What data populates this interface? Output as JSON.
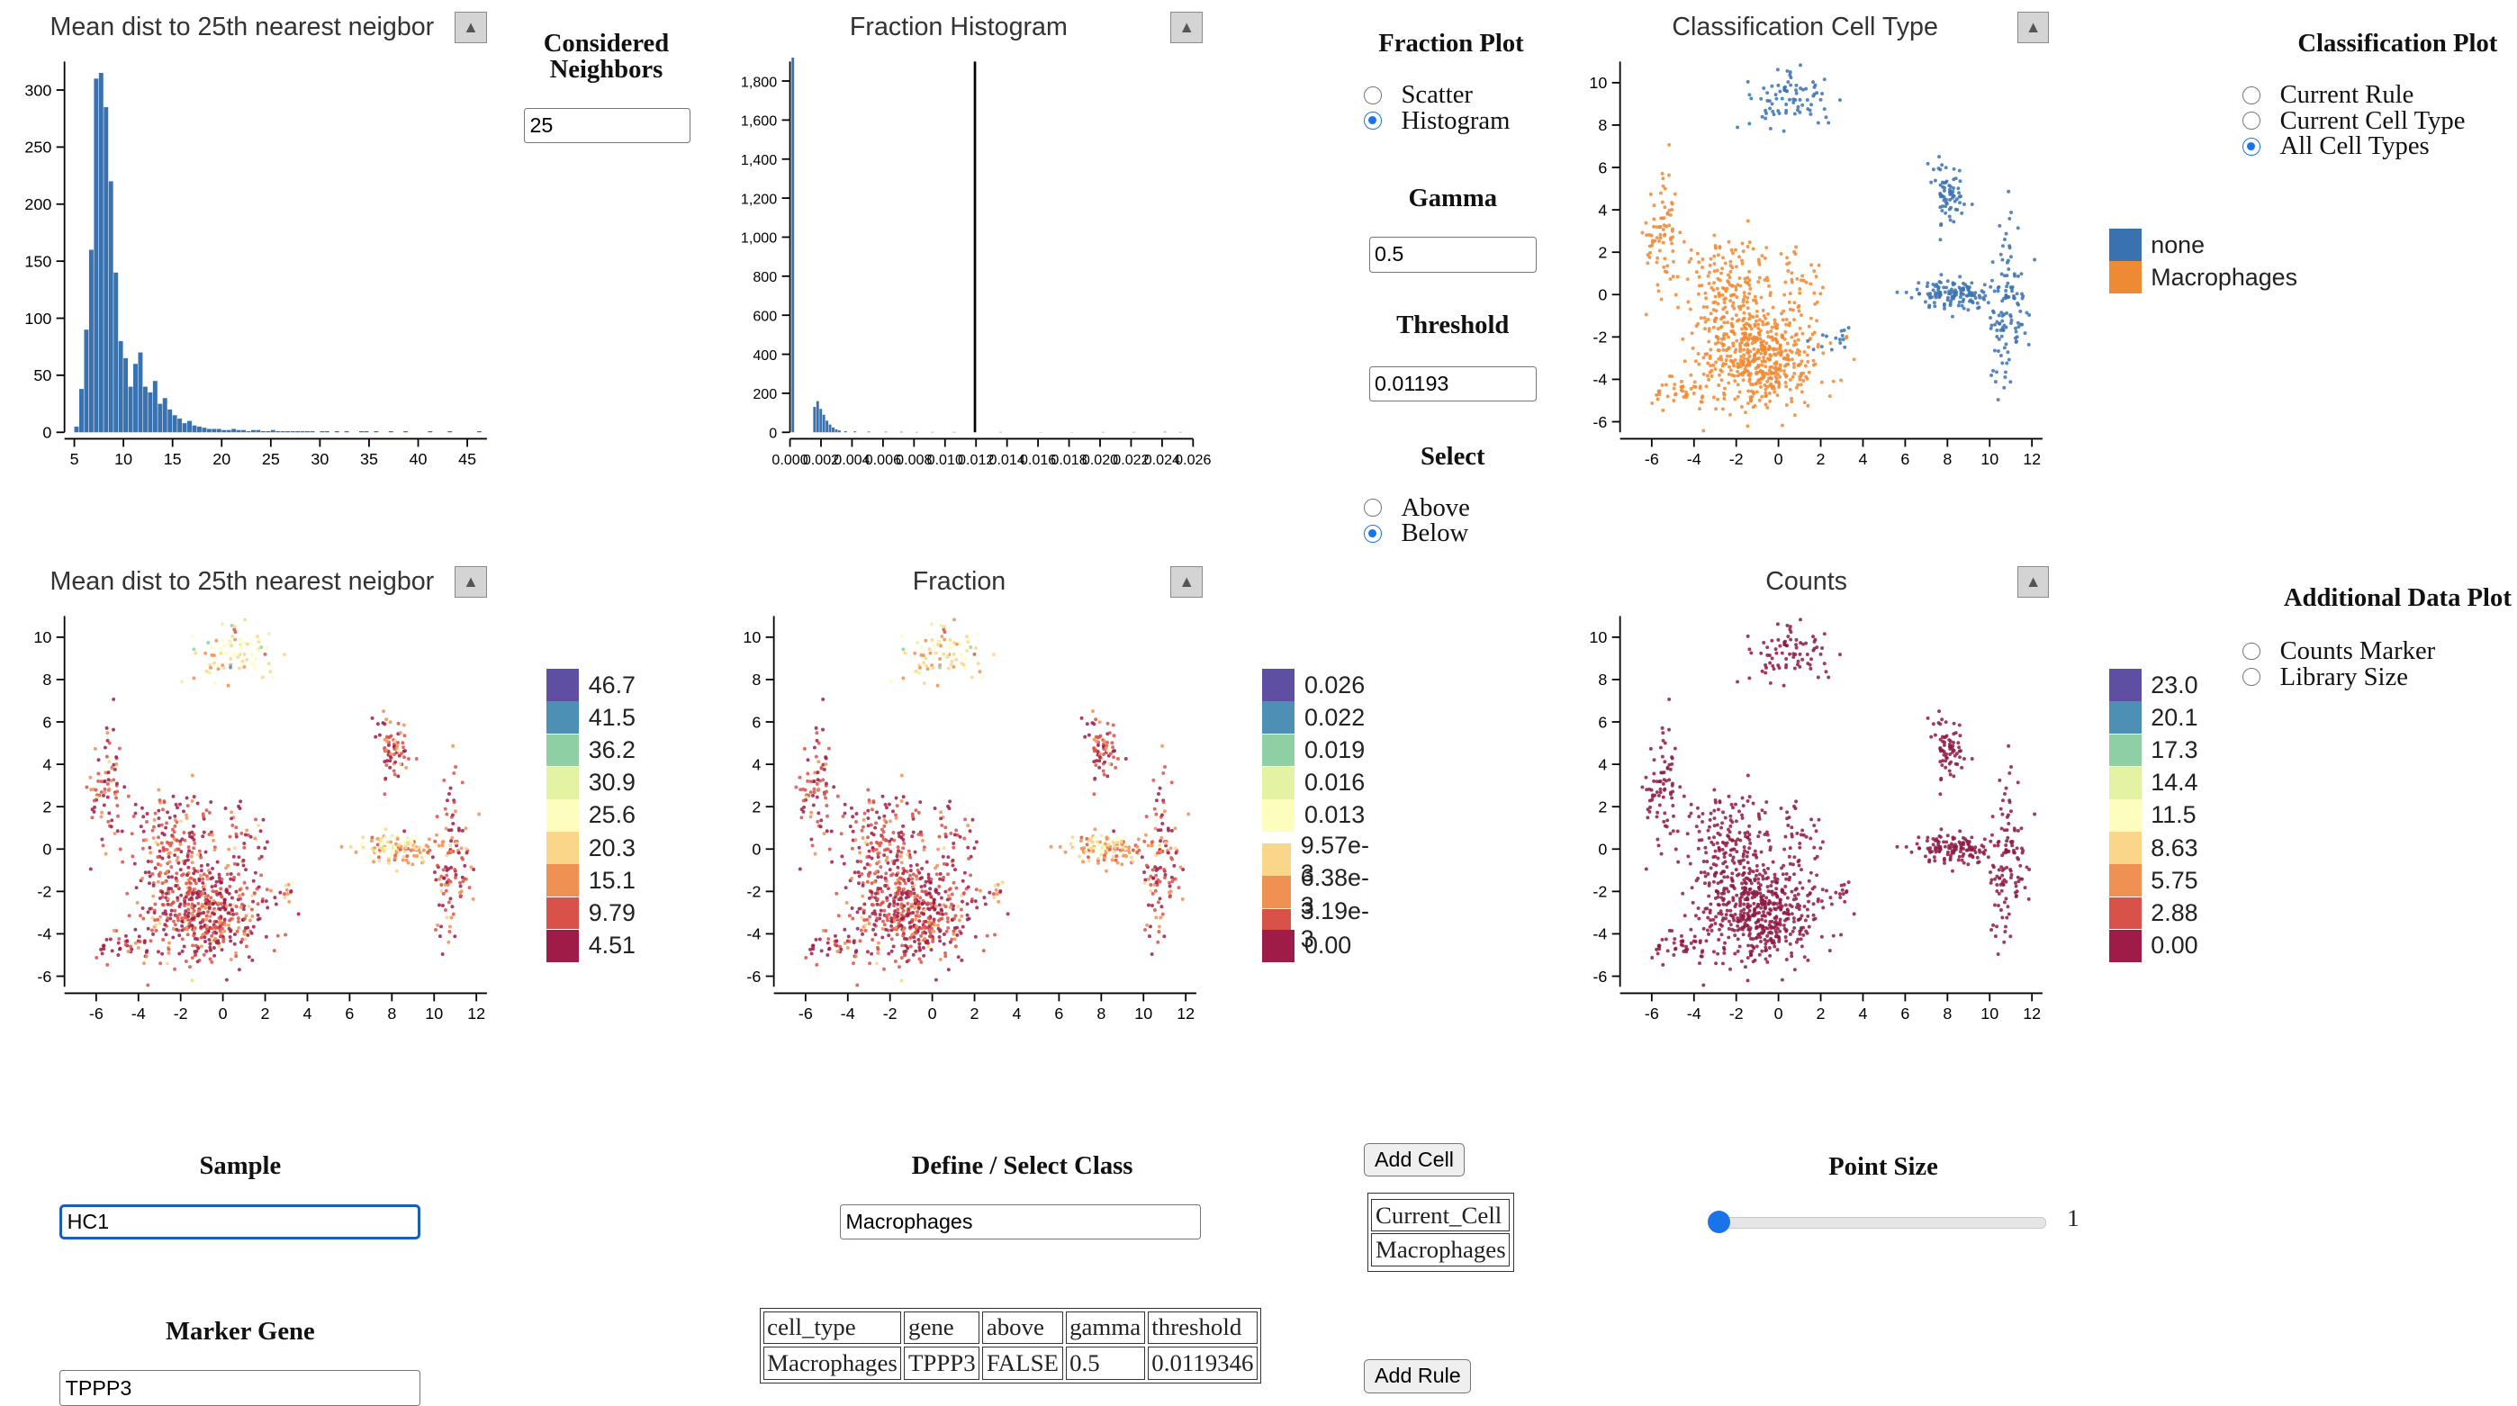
{
  "panels": {
    "hist_dist": {
      "title": "Mean dist to 25th nearest neigbor",
      "collapse": "▲"
    },
    "hist_frac": {
      "title": "Fraction Histogram",
      "collapse": "▲"
    },
    "umap_class": {
      "title": "Classification Cell Type",
      "collapse": "▲"
    },
    "umap_dist": {
      "title": "Mean dist to 25th nearest neigbor",
      "collapse": "▲"
    },
    "umap_frac": {
      "title": "Fraction",
      "collapse": "▲"
    },
    "umap_counts": {
      "title": "Counts",
      "collapse": "▲"
    }
  },
  "controls": {
    "considered_neighbors": {
      "label": "Considered Neighbors",
      "value": "25"
    },
    "fraction_plot": {
      "label": "Fraction Plot",
      "options": [
        "Scatter",
        "Histogram"
      ],
      "selected": "Histogram"
    },
    "gamma": {
      "label": "Gamma",
      "value": "0.5"
    },
    "threshold": {
      "label": "Threshold",
      "value": "0.01193"
    },
    "select": {
      "label": "Select",
      "options": [
        "Above",
        "Below"
      ],
      "selected": "Below"
    },
    "classification_plot": {
      "label": "Classification Plot",
      "options": [
        "Current Rule",
        "Current Cell Type",
        "All Cell Types"
      ],
      "selected": "All Cell Types"
    },
    "additional_data_plot": {
      "label": "Additional Data Plot",
      "options": [
        "Counts Marker",
        "Library Size"
      ],
      "selected": ""
    },
    "sample": {
      "label": "Sample",
      "value": "HC1"
    },
    "marker_gene": {
      "label": "Marker Gene",
      "value": "TPPP3"
    },
    "define_class": {
      "label": "Define / Select Class",
      "value": "Macrophages"
    },
    "add_cell_button": "Add Cell",
    "add_rule_button": "Add Rule",
    "cell_list": [
      "Current_Cell",
      "Macrophages"
    ],
    "point_size": {
      "label": "Point Size",
      "value": "1",
      "fraction": 0.0
    }
  },
  "rule_table": {
    "headers": [
      "cell_type",
      "gene",
      "above",
      "gamma",
      "threshold"
    ],
    "rows": [
      [
        "Macrophages",
        "TPPP3",
        "FALSE",
        "0.5",
        "0.0119346"
      ]
    ]
  },
  "colors": {
    "bar": "#3a72b0",
    "class_none": "#3a72b0",
    "class_macrophages": "#ef8a34",
    "spectral": [
      "#5e4fa2",
      "#4d8fb5",
      "#8fcfa4",
      "#e3f3a3",
      "#fdfdbd",
      "#f9d68a",
      "#ef9153",
      "#d95249",
      "#9e1c47"
    ],
    "point_dark": "#8d1a44"
  },
  "chart_data": [
    {
      "type": "bar",
      "title": "Mean dist to 25th nearest neigbor",
      "xlim": [
        4,
        47
      ],
      "ylim": [
        0,
        325
      ],
      "xticks": [
        5,
        10,
        15,
        20,
        25,
        30,
        35,
        40,
        45
      ],
      "yticks": [
        0,
        50,
        100,
        150,
        200,
        250,
        300
      ],
      "bin_start": 4.5,
      "bin_width": 0.5,
      "values": [
        0,
        5,
        38,
        90,
        160,
        310,
        315,
        285,
        220,
        140,
        80,
        65,
        40,
        60,
        70,
        40,
        35,
        45,
        25,
        30,
        20,
        15,
        12,
        8,
        10,
        6,
        5,
        4,
        3,
        3,
        3,
        2,
        2,
        3,
        2,
        2,
        1,
        2,
        2,
        1,
        1,
        2,
        1,
        1,
        1,
        1,
        1,
        1,
        1,
        1,
        0,
        1,
        1,
        0,
        1,
        0,
        1,
        0,
        0,
        1,
        1,
        0,
        1,
        0,
        0,
        1,
        0,
        0,
        1,
        0,
        0,
        0,
        0,
        1,
        0,
        0,
        0,
        1,
        0,
        0,
        0,
        0,
        0,
        1
      ]
    },
    {
      "type": "bar",
      "title": "Fraction Histogram",
      "xlim": [
        0,
        0.026
      ],
      "ylim": [
        0,
        1900
      ],
      "xticks": [
        0,
        0.002,
        0.004,
        0.006,
        0.008,
        0.01,
        0.012,
        0.014,
        0.016,
        0.018,
        0.02,
        0.022,
        0.024,
        0.026
      ],
      "xticklabels": [
        "0.000",
        "0.002",
        "0.004",
        "0.006",
        "0.008",
        "0.010",
        "0.012",
        "0.014",
        "0.016",
        "0.018",
        "0.020",
        "0.022",
        "0.024",
        "0.026"
      ],
      "yticks": [
        0,
        200,
        400,
        600,
        800,
        1000,
        1200,
        1400,
        1600,
        1800
      ],
      "yticklabels": [
        "0",
        "200",
        "400",
        "600",
        "800",
        "1,000",
        "1,200",
        "1,400",
        "1,600",
        "1,800"
      ],
      "bin_width": 0.0002,
      "bins": [
        [
          0.0001,
          1920
        ],
        [
          0.0015,
          130
        ],
        [
          0.0017,
          160
        ],
        [
          0.0019,
          120
        ],
        [
          0.0021,
          90
        ],
        [
          0.0023,
          60
        ],
        [
          0.0025,
          40
        ],
        [
          0.0027,
          25
        ],
        [
          0.0029,
          15
        ],
        [
          0.0031,
          10
        ],
        [
          0.0035,
          6
        ],
        [
          0.0041,
          5
        ],
        [
          0.005,
          4
        ],
        [
          0.0061,
          3
        ],
        [
          0.0071,
          3
        ],
        [
          0.0081,
          2
        ],
        [
          0.0091,
          2
        ],
        [
          0.0105,
          2
        ],
        [
          0.0135,
          2
        ],
        [
          0.0161,
          1
        ],
        [
          0.0181,
          1
        ],
        [
          0.0201,
          2
        ],
        [
          0.0221,
          2
        ],
        [
          0.0241,
          3
        ],
        [
          0.0251,
          2
        ]
      ],
      "threshold_line": 0.01193
    },
    {
      "type": "scatter",
      "title": "Classification Cell Type",
      "xlim": [
        -7.5,
        12.5
      ],
      "ylim": [
        -6.5,
        11
      ],
      "xticks": [
        -6,
        -4,
        -2,
        0,
        2,
        4,
        6,
        8,
        10,
        12
      ],
      "yticks": [
        -6,
        -4,
        -2,
        0,
        2,
        4,
        6,
        8,
        10
      ],
      "legend": [
        "none",
        "Macrophages"
      ],
      "series": [
        {
          "name": "none",
          "color": "#3a72b0"
        },
        {
          "name": "Macrophages",
          "color": "#ef8a34"
        }
      ]
    },
    {
      "type": "scatter",
      "title": "Mean dist to 25th nearest neigbor",
      "colorbar": [
        "46.7",
        "41.5",
        "36.2",
        "30.9",
        "25.6",
        "20.3",
        "15.1",
        "9.79",
        "4.51"
      ]
    },
    {
      "type": "scatter",
      "title": "Fraction",
      "colorbar": [
        "0.026",
        "0.022",
        "0.019",
        "0.016",
        "0.013",
        "9.57e-3",
        "6.38e-3",
        "3.19e-3",
        "0.00"
      ]
    },
    {
      "type": "scatter",
      "title": "Counts",
      "colorbar": [
        "23.0",
        "20.1",
        "17.3",
        "14.4",
        "11.5",
        "8.63",
        "5.75",
        "2.88",
        "0.00"
      ]
    }
  ]
}
